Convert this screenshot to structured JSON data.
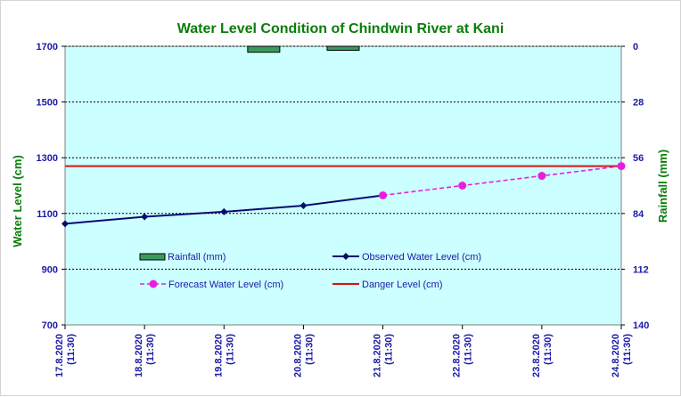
{
  "chart_data": {
    "type": "line",
    "title": "Water Level Condition  of Chindwin River at  Kani",
    "ylabel": "Water Level (cm)",
    "y2label": "Rainfall (mm)",
    "ylim": [
      700,
      1700
    ],
    "y2lim": [
      0,
      140
    ],
    "y2_inverted": true,
    "yticks": [
      "700",
      "900",
      "1100",
      "1300",
      "1500",
      "1700"
    ],
    "y2ticks": [
      "140",
      "112",
      "84",
      "56",
      "28",
      "0"
    ],
    "grid": true,
    "categories": [
      {
        "date": "17.8.2020",
        "time": "(11:30)"
      },
      {
        "date": "18.8.2020",
        "time": "(11:30)"
      },
      {
        "date": "19.8.2020",
        "time": "(11:30)"
      },
      {
        "date": "20.8.2020",
        "time": "(11:30)"
      },
      {
        "date": "21.8.2020",
        "time": "(11:30)"
      },
      {
        "date": "22.8.2020",
        "time": "(11:30)"
      },
      {
        "date": "23.8.2020",
        "time": "(11:30)"
      },
      {
        "date": "24.8.2020",
        "time": "(11:30)"
      }
    ],
    "series": [
      {
        "name": "Rainfall (mm)",
        "kind": "bar",
        "axis": "y2",
        "color": "#3a9a5c",
        "values": [
          0,
          0,
          3,
          2,
          0,
          0,
          0,
          0
        ]
      },
      {
        "name": "Observed Water Level (cm)",
        "kind": "line",
        "color": "#0b0b6e",
        "values": [
          1063,
          1088,
          1106,
          1128,
          1165,
          null,
          null,
          null
        ]
      },
      {
        "name": "Forecast Water Level (cm)",
        "kind": "dashed-line",
        "color": "#e91ee0",
        "values": [
          null,
          null,
          null,
          null,
          1165,
          1200,
          1235,
          1270
        ]
      },
      {
        "name": "Danger Level (cm)",
        "kind": "constant-line",
        "color": "#dd1111",
        "value": 1270
      }
    ],
    "legend_position": "inside-bottom"
  }
}
